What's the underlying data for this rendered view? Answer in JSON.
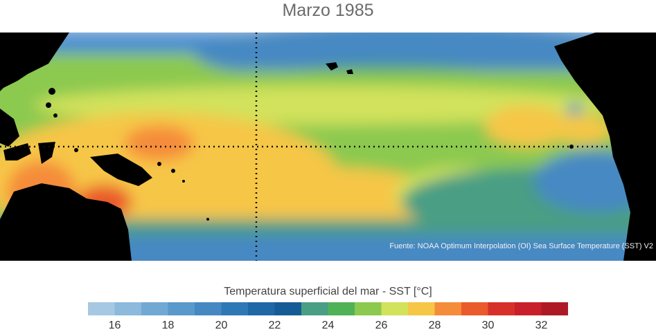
{
  "title": "Marzo 1985",
  "source": "Fuente: NOAA Optimum Interpolation (OI) Sea Surface Temperature (SST) V2",
  "colorbar": {
    "label": "Temperatura superficial del mar - SST  [°C]",
    "colors": [
      "#a6c8e2",
      "#8cb9dc",
      "#72a9d4",
      "#5a99cb",
      "#4689c2",
      "#2f78b6",
      "#1f67a7",
      "#155c96",
      "#4a9e84",
      "#4fb257",
      "#8cc94f",
      "#d2e25b",
      "#f6c646",
      "#f58c3a",
      "#ea5a2b",
      "#d7302a",
      "#c91f2b",
      "#ad1a25"
    ],
    "tick_values": [
      16,
      18,
      20,
      22,
      24,
      26,
      28,
      30,
      32
    ],
    "range": [
      15,
      33
    ]
  }
}
